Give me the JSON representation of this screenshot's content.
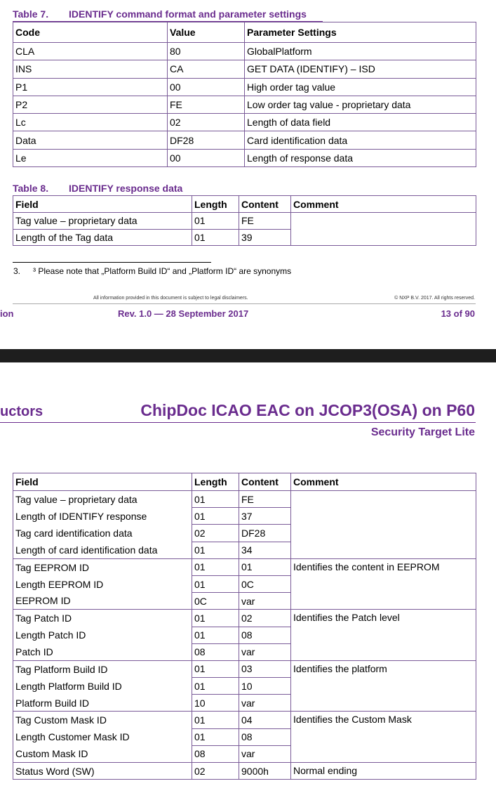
{
  "table7": {
    "number": "Table 7.",
    "caption": "IDENTIFY command format and parameter settings",
    "header": [
      "Code",
      "Value",
      "Parameter Settings"
    ],
    "rows": [
      [
        "CLA",
        "80",
        "GlobalPlatform"
      ],
      [
        "INS",
        "CA",
        "GET DATA (IDENTIFY) – ISD"
      ],
      [
        "P1",
        "00",
        "High order tag value"
      ],
      [
        "P2",
        "FE",
        "Low order tag value - proprietary data"
      ],
      [
        "Lc",
        "02",
        "Length of data field"
      ],
      [
        "Data",
        "DF28",
        "Card identification data"
      ],
      [
        "Le",
        "00",
        "Length of response data"
      ]
    ]
  },
  "table8": {
    "number": "Table 8.",
    "caption": "IDENTIFY response data",
    "header": [
      "Field",
      "Length",
      "Content",
      "Comment"
    ],
    "rows": [
      [
        "Tag value – proprietary data",
        "01",
        "FE"
      ],
      [
        "Length of the Tag data",
        "01",
        "39"
      ]
    ]
  },
  "footnote": {
    "number": "3.",
    "text": "³ Please note that „Platform Build ID“ and „Platform ID“ are synonyms"
  },
  "footer": {
    "disclaimer": "All information provided in this document is subject to legal disclaimers.",
    "copyright": "© NXP B.V. 2017. All rights reserved.",
    "left_fragment": "ion",
    "revision": "Rev. 1.0 — 28 September 2017",
    "page": "13 of 90"
  },
  "page_header": {
    "left_fragment": "uctors",
    "title": "ChipDoc ICAO EAC on JCOP3(OSA) on P60",
    "subtitle": "Security Target Lite"
  },
  "table_continued": {
    "header": [
      "Field",
      "Length",
      "Content",
      "Comment"
    ],
    "groups": [
      {
        "rows": [
          [
            "Tag value – proprietary data",
            "01",
            "FE"
          ],
          [
            "Length of IDENTIFY response",
            "01",
            "37"
          ],
          [
            "Tag card identification data",
            "02",
            "DF28"
          ],
          [
            "Length of card identification data",
            "01",
            "34"
          ]
        ]
      },
      {
        "comment": "Identifies the content in EEPROM",
        "rows": [
          [
            "Tag EEPROM ID",
            "01",
            "01"
          ],
          [
            "Length EEPROM ID",
            "01",
            "0C"
          ],
          [
            "EEPROM ID",
            "0C",
            "var"
          ]
        ]
      },
      {
        "comment": "Identifies the Patch level",
        "rows": [
          [
            "Tag Patch ID",
            "01",
            "02"
          ],
          [
            "Length Patch ID",
            "01",
            "08"
          ],
          [
            "Patch ID",
            "08",
            "var"
          ]
        ]
      },
      {
        "comment": "Identifies the platform",
        "rows": [
          [
            "Tag Platform Build ID",
            "01",
            "03"
          ],
          [
            "Length Platform Build ID",
            "01",
            "10"
          ],
          [
            "Platform Build ID",
            "10",
            "var"
          ]
        ]
      },
      {
        "comment": "Identifies the Custom Mask",
        "rows": [
          [
            "Tag Custom Mask ID",
            "01",
            "04"
          ],
          [
            "Length Customer Mask ID",
            "01",
            "08"
          ],
          [
            "Custom Mask ID",
            "08",
            "var"
          ]
        ]
      },
      {
        "comment": "Normal ending",
        "rows": [
          [
            "Status Word (SW)",
            "02",
            "9000h"
          ]
        ]
      }
    ]
  }
}
